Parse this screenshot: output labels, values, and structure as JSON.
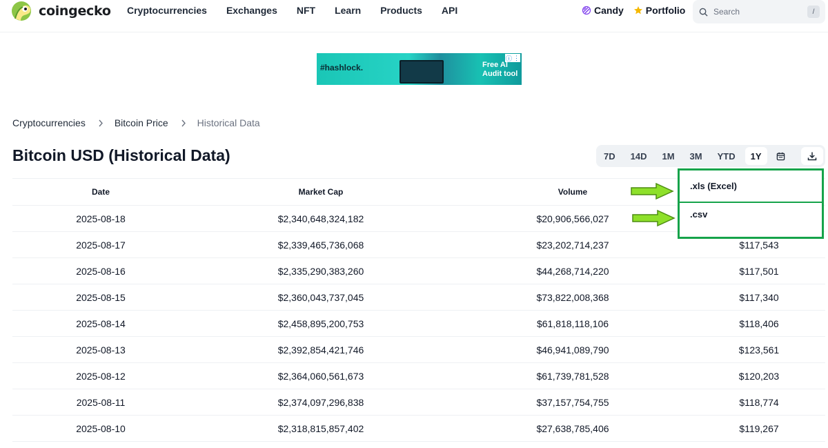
{
  "brand": {
    "name": "coingecko"
  },
  "nav": {
    "items": [
      "Cryptocurrencies",
      "Exchanges",
      "NFT",
      "Learn",
      "Products",
      "API"
    ]
  },
  "top_right": {
    "candy": "Candy",
    "portfolio": "Portfolio"
  },
  "search": {
    "placeholder": "Search",
    "shortcut": "/"
  },
  "ad": {
    "brand": "#hashlock.",
    "line1": "Free AI",
    "line2": "Audit tool"
  },
  "breadcrumb": {
    "items": [
      "Cryptocurrencies",
      "Bitcoin Price",
      "Historical Data"
    ]
  },
  "page": {
    "title": "Bitcoin USD (Historical Data)"
  },
  "ranges": {
    "options": [
      "7D",
      "14D",
      "1M",
      "3M",
      "YTD",
      "1Y"
    ],
    "selected": "1Y"
  },
  "download_menu": {
    "options": [
      ".xls (Excel)",
      ".csv"
    ]
  },
  "table": {
    "headers": [
      "Date",
      "Market Cap",
      "Volume",
      ""
    ],
    "rows": [
      [
        "2025-08-18",
        "$2,340,648,324,182",
        "$20,906,566,027",
        ""
      ],
      [
        "2025-08-17",
        "$2,339,465,736,068",
        "$23,202,714,237",
        "$117,543"
      ],
      [
        "2025-08-16",
        "$2,335,290,383,260",
        "$44,268,714,220",
        "$117,501"
      ],
      [
        "2025-08-15",
        "$2,360,043,737,045",
        "$73,822,008,368",
        "$117,340"
      ],
      [
        "2025-08-14",
        "$2,458,895,200,753",
        "$61,818,118,106",
        "$118,406"
      ],
      [
        "2025-08-13",
        "$2,392,854,421,746",
        "$46,941,089,790",
        "$123,561"
      ],
      [
        "2025-08-12",
        "$2,364,060,561,673",
        "$61,739,781,528",
        "$120,203"
      ],
      [
        "2025-08-11",
        "$2,374,097,296,838",
        "$37,157,754,755",
        "$118,774"
      ],
      [
        "2025-08-10",
        "$2,318,815,857,402",
        "$27,638,785,406",
        "$119,267"
      ]
    ]
  },
  "colors": {
    "highlight": "#16a34a",
    "arrow": "#8ee02a",
    "accent": "#8dc647"
  }
}
